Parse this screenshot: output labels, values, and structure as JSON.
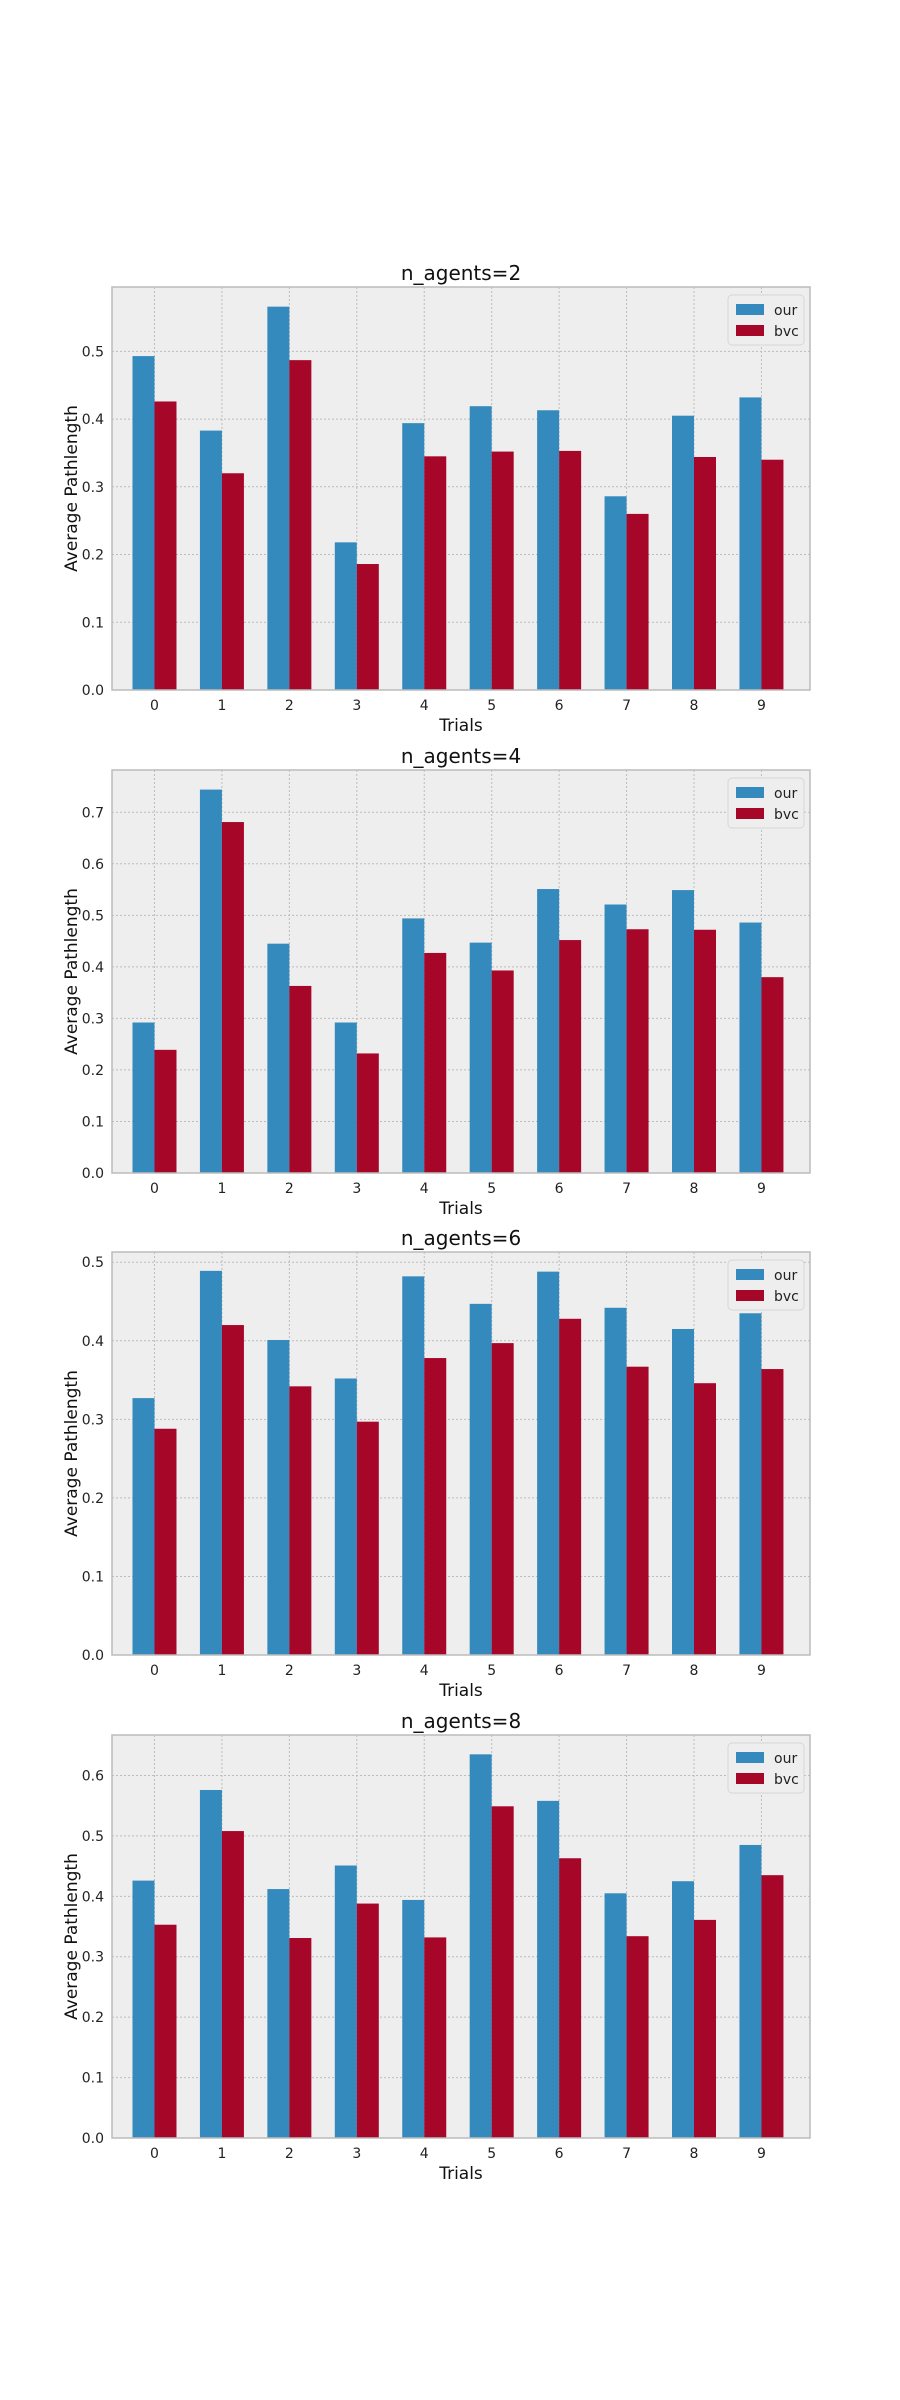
{
  "colors": {
    "our": "#348abd",
    "bvc": "#a60628",
    "axes_bg": "#eeeeee",
    "grid": "#bcbcbc",
    "spine": "#bcbcbc"
  },
  "chart_data": [
    {
      "type": "bar",
      "title": "n_agents=2",
      "xlabel": "Trials",
      "ylabel": "Average Pathlength",
      "categories": [
        "0",
        "1",
        "2",
        "3",
        "4",
        "5",
        "6",
        "7",
        "8",
        "9"
      ],
      "series": [
        {
          "name": "our",
          "values": [
            0.493,
            0.383,
            0.566,
            0.218,
            0.394,
            0.419,
            0.413,
            0.286,
            0.405,
            0.432
          ]
        },
        {
          "name": "bvc",
          "values": [
            0.426,
            0.32,
            0.487,
            0.186,
            0.345,
            0.352,
            0.353,
            0.26,
            0.344,
            0.34
          ]
        }
      ],
      "yticks": [
        "0.0",
        "0.1",
        "0.2",
        "0.3",
        "0.4",
        "0.5"
      ],
      "ylim": [
        0,
        0.595
      ],
      "grid": true,
      "legend": "top-right"
    },
    {
      "type": "bar",
      "title": "n_agents=4",
      "xlabel": "Trials",
      "ylabel": "Average Pathlength",
      "categories": [
        "0",
        "1",
        "2",
        "3",
        "4",
        "5",
        "6",
        "7",
        "8",
        "9"
      ],
      "series": [
        {
          "name": "our",
          "values": [
            0.292,
            0.744,
            0.445,
            0.292,
            0.494,
            0.447,
            0.551,
            0.521,
            0.549,
            0.486
          ]
        },
        {
          "name": "bvc",
          "values": [
            0.239,
            0.681,
            0.363,
            0.232,
            0.427,
            0.393,
            0.452,
            0.473,
            0.472,
            0.38
          ]
        }
      ],
      "yticks": [
        "0.0",
        "0.1",
        "0.2",
        "0.3",
        "0.4",
        "0.5",
        "0.6",
        "0.7"
      ],
      "ylim": [
        0,
        0.782
      ],
      "grid": true,
      "legend": "top-right"
    },
    {
      "type": "bar",
      "title": "n_agents=6",
      "xlabel": "Trials",
      "ylabel": "Average Pathlength",
      "categories": [
        "0",
        "1",
        "2",
        "3",
        "4",
        "5",
        "6",
        "7",
        "8",
        "9"
      ],
      "series": [
        {
          "name": "our",
          "values": [
            0.327,
            0.489,
            0.401,
            0.352,
            0.482,
            0.447,
            0.488,
            0.442,
            0.415,
            0.435
          ]
        },
        {
          "name": "bvc",
          "values": [
            0.288,
            0.42,
            0.342,
            0.297,
            0.378,
            0.397,
            0.428,
            0.367,
            0.346,
            0.364
          ]
        }
      ],
      "yticks": [
        "0.0",
        "0.1",
        "0.2",
        "0.3",
        "0.4",
        "0.5"
      ],
      "ylim": [
        0,
        0.513
      ],
      "grid": true,
      "legend": "top-right"
    },
    {
      "type": "bar",
      "title": "n_agents=8",
      "xlabel": "Trials",
      "ylabel": "Average Pathlength",
      "categories": [
        "0",
        "1",
        "2",
        "3",
        "4",
        "5",
        "6",
        "7",
        "8",
        "9"
      ],
      "series": [
        {
          "name": "our",
          "values": [
            0.426,
            0.576,
            0.412,
            0.451,
            0.394,
            0.635,
            0.558,
            0.405,
            0.425,
            0.485
          ]
        },
        {
          "name": "bvc",
          "values": [
            0.353,
            0.508,
            0.331,
            0.388,
            0.332,
            0.549,
            0.463,
            0.334,
            0.361,
            0.435
          ]
        }
      ],
      "yticks": [
        "0.0",
        "0.1",
        "0.2",
        "0.3",
        "0.4",
        "0.5",
        "0.6"
      ],
      "ylim": [
        0,
        0.667
      ],
      "grid": true,
      "legend": "top-right"
    }
  ]
}
